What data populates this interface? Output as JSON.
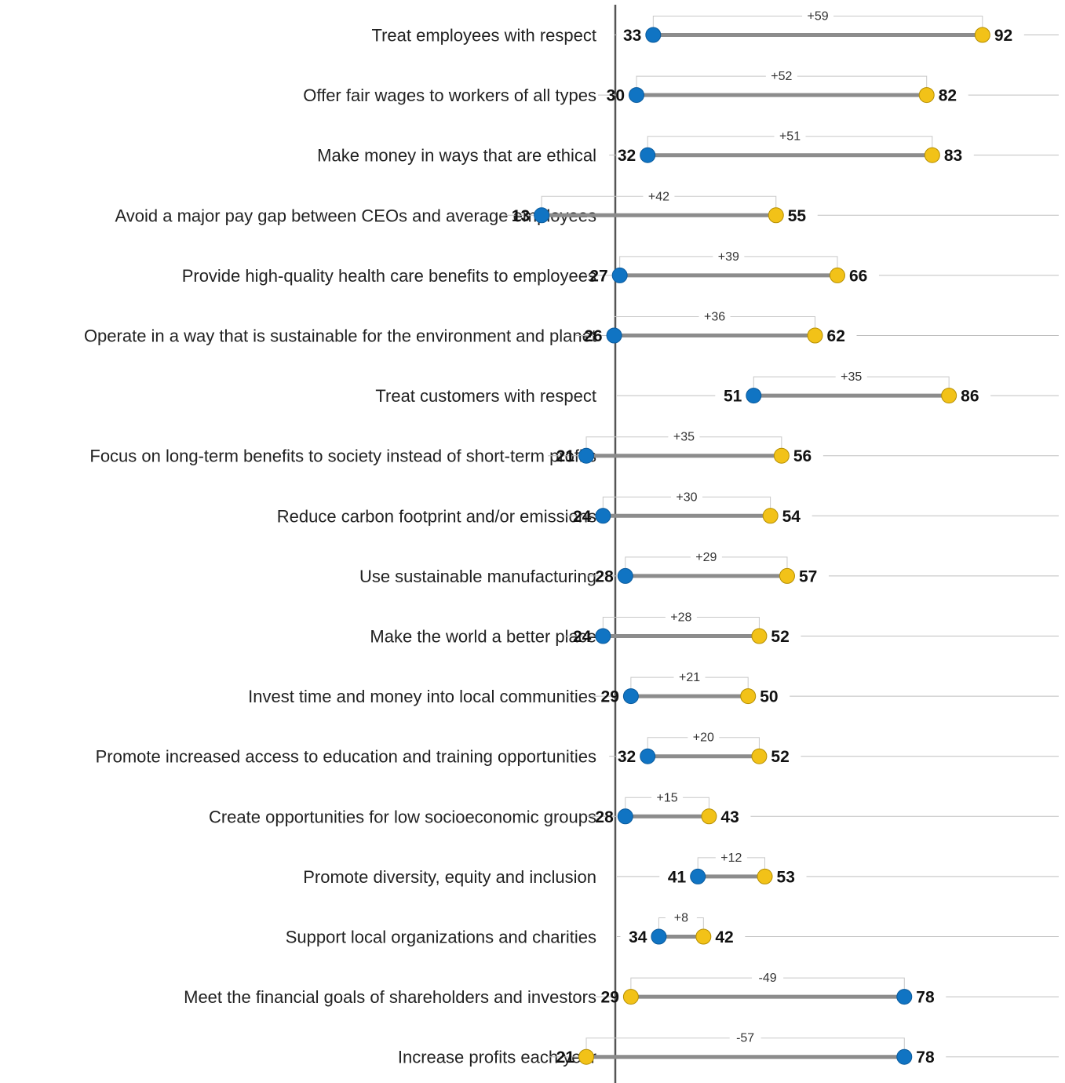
{
  "chart_data": {
    "type": "dumbbell",
    "title": "",
    "xlabel": "",
    "ylabel": "",
    "grid": false,
    "legend": "none",
    "colors": {
      "blue": "#1074c3",
      "yellow": "#f2c218",
      "connector": "#8c8c8c",
      "axis": "#555555",
      "guide": "#bfbfbf",
      "bracket": "#c8c8c8"
    },
    "rows": [
      {
        "label": "Treat employees with respect",
        "blue": 33,
        "yellow": 92,
        "diff": "+59"
      },
      {
        "label": "Offer fair wages to workers of all types",
        "blue": 30,
        "yellow": 82,
        "diff": "+52"
      },
      {
        "label": "Make money in ways that are ethical",
        "blue": 32,
        "yellow": 83,
        "diff": "+51"
      },
      {
        "label": "Avoid a major pay gap between CEOs and average employees",
        "blue": 13,
        "yellow": 55,
        "diff": "+42"
      },
      {
        "label": "Provide high-quality health care benefits to employees",
        "blue": 27,
        "yellow": 66,
        "diff": "+39"
      },
      {
        "label": "Operate in a way that is sustainable for the environment and planet",
        "blue": 26,
        "yellow": 62,
        "diff": "+36"
      },
      {
        "label": "Treat customers with respect",
        "blue": 51,
        "yellow": 86,
        "diff": "+35"
      },
      {
        "label": "Focus on long-term benefits to society instead of short-term profits",
        "blue": 21,
        "yellow": 56,
        "diff": "+35"
      },
      {
        "label": "Reduce carbon footprint and/or emissions",
        "blue": 24,
        "yellow": 54,
        "diff": "+30"
      },
      {
        "label": "Use sustainable manufacturing",
        "blue": 28,
        "yellow": 57,
        "diff": "+29"
      },
      {
        "label": "Make the world a better place",
        "blue": 24,
        "yellow": 52,
        "diff": "+28"
      },
      {
        "label": "Invest time and money into local communities",
        "blue": 29,
        "yellow": 50,
        "diff": "+21"
      },
      {
        "label": "Promote increased access to education and training opportunities",
        "blue": 32,
        "yellow": 52,
        "diff": "+20"
      },
      {
        "label": "Create opportunities for low socioeconomic groups",
        "blue": 28,
        "yellow": 43,
        "diff": "+15"
      },
      {
        "label": "Promote diversity, equity and inclusion",
        "blue": 41,
        "yellow": 53,
        "diff": "+12"
      },
      {
        "label": "Support local organizations and charities",
        "blue": 34,
        "yellow": 42,
        "diff": "+8"
      },
      {
        "label": "Meet the financial goals of shareholders and investors",
        "blue": 78,
        "yellow": 29,
        "diff": "-49"
      },
      {
        "label": "Increase profits each year",
        "blue": 78,
        "yellow": 21,
        "diff": "-57"
      }
    ]
  }
}
